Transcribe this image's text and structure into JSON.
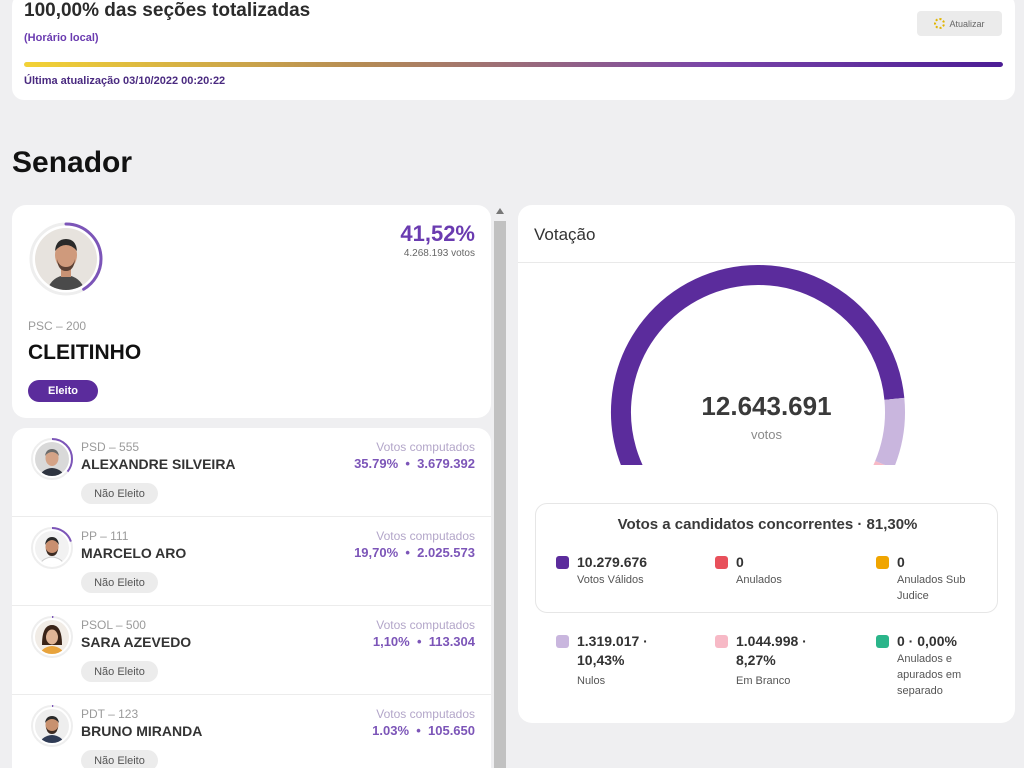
{
  "status": {
    "title": "100,00% das seções totalizadas",
    "subtitle": "(Horário local)",
    "refresh_label": "Atualizar",
    "progress_percent": 100,
    "last_update": "Última atualização 03/10/2022 00:20:22"
  },
  "section_title": "Senador",
  "winner": {
    "percent": "41,52%",
    "votes": "4.268.193 votos",
    "party": "PSC – 200",
    "name": "CLEITINHO",
    "badge": "Eleito",
    "ring_fraction": 0.4152
  },
  "candidates": [
    {
      "party": "PSD – 555",
      "name": "ALEXANDRE SILVEIRA",
      "label": "Votos computados",
      "stats": "35.79%  •  3.679.392",
      "badge": "Não Eleito",
      "ring_fraction": 0.3579
    },
    {
      "party": "PP – 111",
      "name": "MARCELO ARO",
      "label": "Votos computados",
      "stats": "19,70%  •  2.025.573",
      "badge": "Não Eleito",
      "ring_fraction": 0.197
    },
    {
      "party": "PSOL – 500",
      "name": "SARA AZEVEDO",
      "label": "Votos computados",
      "stats": "1,10%  •  113.304",
      "badge": "Não Eleito",
      "ring_fraction": 0.011
    },
    {
      "party": "PDT – 123",
      "name": "BRUNO MIRANDA",
      "label": "Votos computados",
      "stats": "1.03%  •  105.650",
      "badge": "Não Eleito",
      "ring_fraction": 0.0103
    }
  ],
  "votacao": {
    "title": "Votação",
    "total": "12.643.691",
    "unit": "votos",
    "gauge_segments": [
      {
        "name": "Votos Válidos",
        "fraction": 0.813,
        "color": "#5b2c9c"
      },
      {
        "name": "Nulos",
        "fraction": 0.1043,
        "color": "#c9b6de"
      },
      {
        "name": "Em Branco",
        "fraction": 0.0827,
        "color": "#f7b9c6"
      }
    ],
    "concorrentes_title": "Votos a candidatos concorrentes · 81,30%",
    "stats": [
      {
        "value": "10.279.676",
        "label": "Votos Válidos",
        "color": "#5b2c9c"
      },
      {
        "value": "0",
        "label": "Anulados",
        "color": "#e8505b"
      },
      {
        "value": "0",
        "label": "Anulados Sub Judice",
        "color": "#f0a500"
      },
      {
        "value": "1.319.017 · 10,43%",
        "label": "Nulos",
        "color": "#c9b6de"
      },
      {
        "value": "1.044.998 · 8,27%",
        "label": "Em Branco",
        "color": "#f7b9c6"
      },
      {
        "value": "0 · 0,00%",
        "label": "Anulados e apurados em separado",
        "color": "#2bb58a"
      }
    ]
  }
}
